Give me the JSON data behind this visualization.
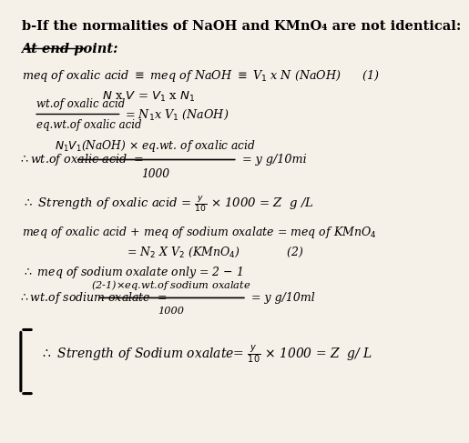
{
  "bg_color": "#f5f0e8",
  "title": "b-If the normalities of NaOH and KMnO₄ are not identical:"
}
